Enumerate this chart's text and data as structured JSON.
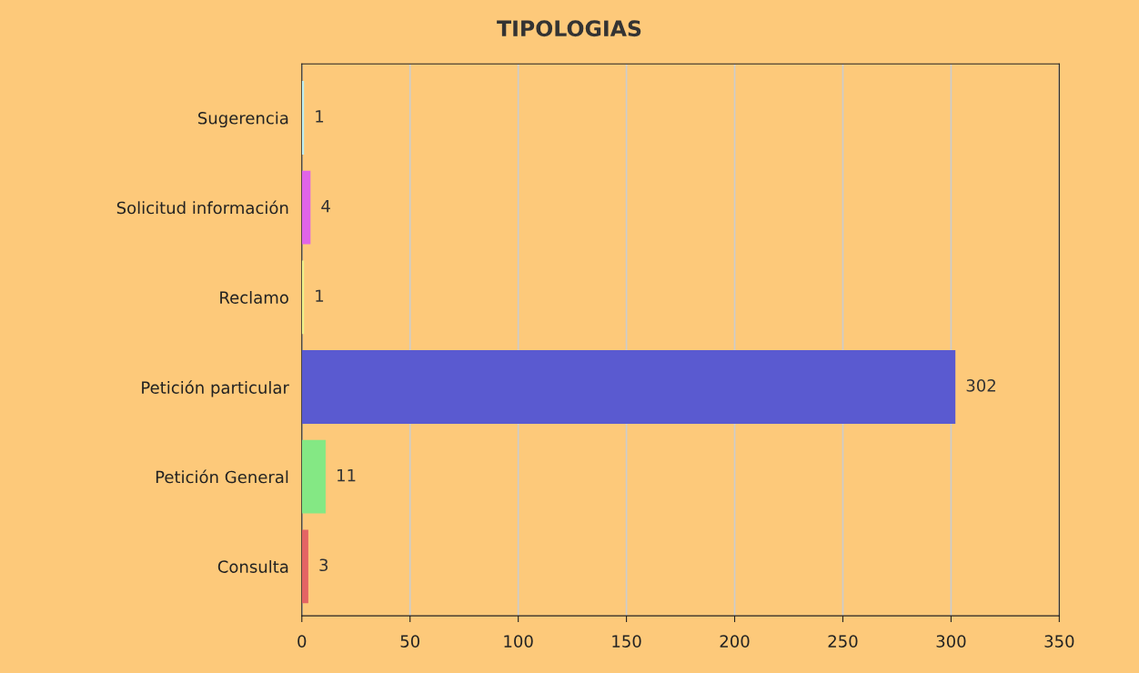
{
  "chart_data": {
    "type": "bar",
    "orientation": "horizontal",
    "title": "TIPOLOGIAS",
    "categories": [
      "Sugerencia",
      "Solicitud información",
      "Reclamo",
      "Petición particular",
      "Petición General",
      "Consulta"
    ],
    "values": [
      1,
      4,
      1,
      302,
      11,
      3
    ],
    "colors": [
      "#bdeef2",
      "#e064e8",
      "#eef08a",
      "#5a5ad0",
      "#84e884",
      "#e46464"
    ],
    "xlim": [
      0,
      350
    ],
    "xticks": [
      0,
      50,
      100,
      150,
      200,
      250,
      300,
      350
    ],
    "grid": "x",
    "data_labels": true
  }
}
